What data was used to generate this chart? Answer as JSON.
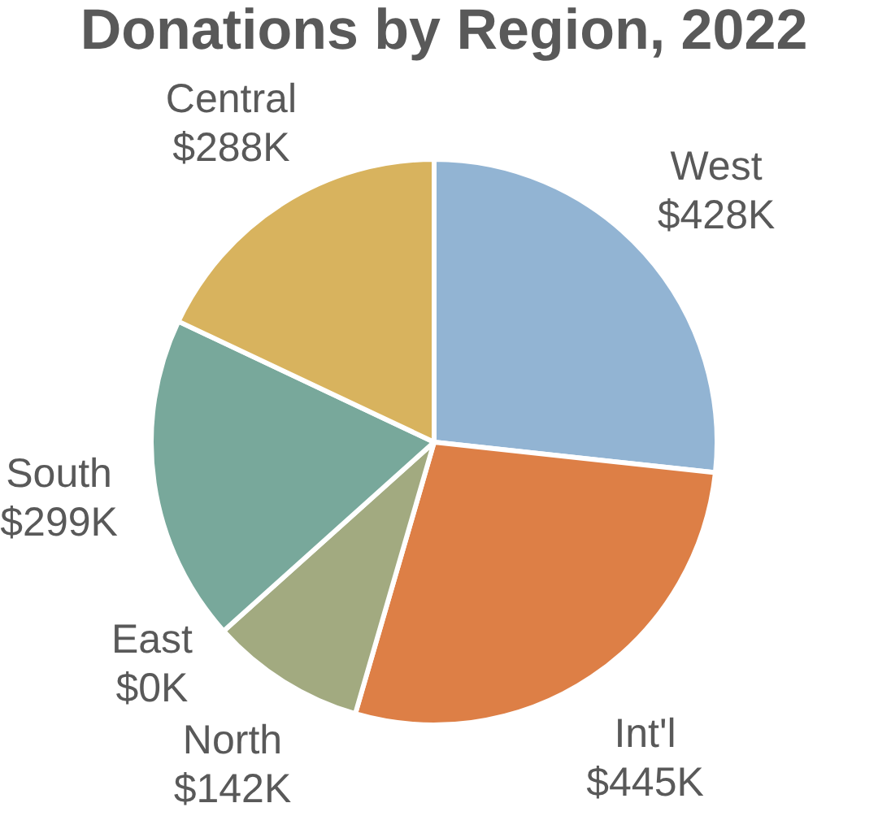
{
  "chart_data": {
    "type": "pie",
    "title": "Donations by Region, 2022",
    "categories": [
      "West",
      "Int'l",
      "North",
      "East",
      "South",
      "Central"
    ],
    "values": [
      428,
      445,
      142,
      0,
      299,
      288
    ],
    "colors": [
      "#92b4d3",
      "#dd7f46",
      "#a2aa80",
      null,
      "#78a89b",
      "#d8b35e"
    ],
    "value_labels": [
      "$428K",
      "$445K",
      "$142K",
      "$0K",
      "$299K",
      "$288K"
    ]
  }
}
